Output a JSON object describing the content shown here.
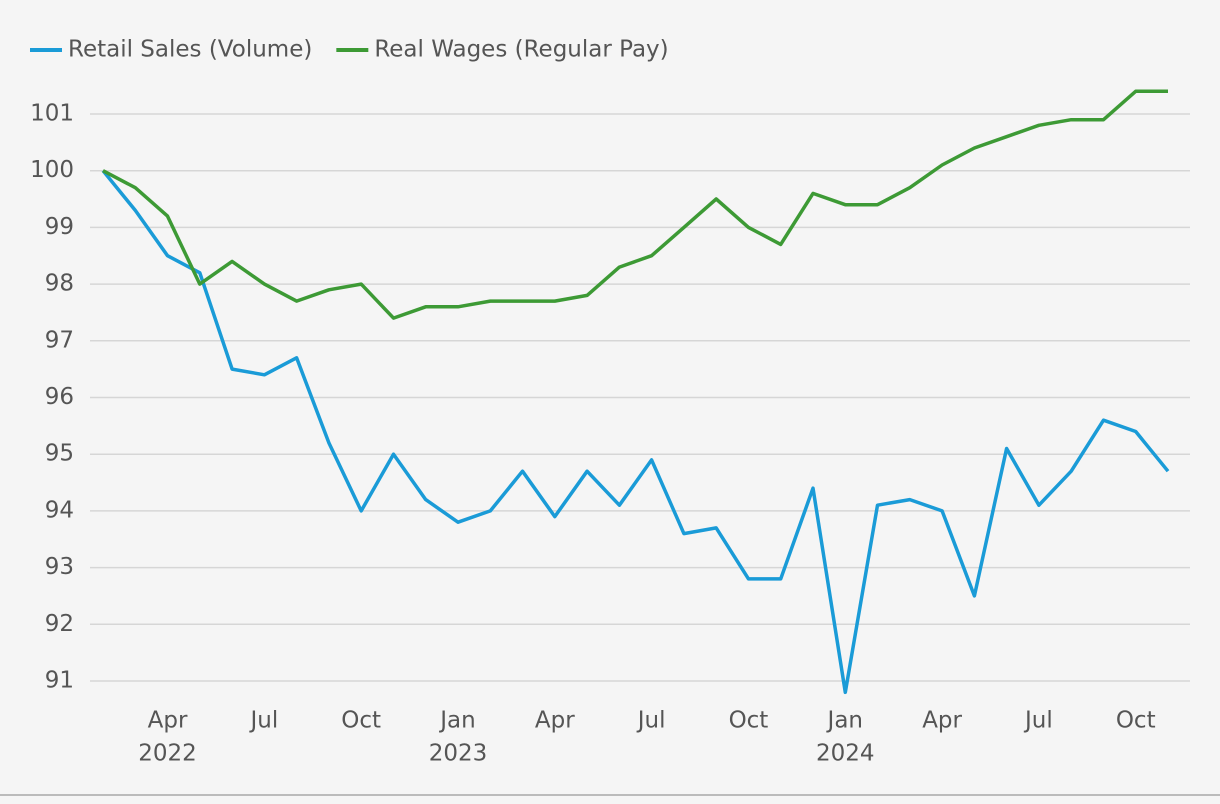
{
  "chart_data": {
    "type": "line",
    "categories": [
      null,
      null,
      "Apr",
      null,
      null,
      "Jul",
      null,
      null,
      "Oct",
      null,
      null,
      "Jan",
      null,
      null,
      "Apr",
      null,
      null,
      "Jul",
      null,
      null,
      "Oct",
      null,
      null,
      "Jan",
      null,
      null,
      "Apr",
      null,
      null,
      "Jul",
      null,
      null,
      "Oct",
      null
    ],
    "years": [
      null,
      null,
      "2022",
      null,
      null,
      null,
      null,
      null,
      null,
      null,
      null,
      "2023",
      null,
      null,
      null,
      null,
      null,
      null,
      null,
      null,
      null,
      null,
      null,
      "2024",
      null,
      null,
      null,
      null,
      null,
      null,
      null,
      null,
      null,
      null
    ],
    "series": [
      {
        "name": "Retail Sales (Volume)",
        "color": "#1a9bd7",
        "values": [
          100,
          99.3,
          98.5,
          98.2,
          96.5,
          96.4,
          96.7,
          95.2,
          94.0,
          95.0,
          94.2,
          93.8,
          94.0,
          94.7,
          93.9,
          94.7,
          94.1,
          94.9,
          93.6,
          93.7,
          92.8,
          92.8,
          94.4,
          90.8,
          94.1,
          94.2,
          94.0,
          92.5,
          95.1,
          94.1,
          94.7,
          95.6,
          95.4,
          94.7
        ]
      },
      {
        "name": "Real Wages (Regular Pay)",
        "color": "#3d9a35",
        "values": [
          100,
          99.7,
          99.2,
          98.0,
          98.4,
          98.0,
          97.7,
          97.9,
          98.0,
          97.4,
          97.6,
          97.6,
          97.7,
          97.7,
          97.7,
          97.8,
          98.3,
          98.5,
          99.0,
          99.5,
          99.0,
          98.7,
          99.6,
          99.4,
          99.4,
          99.7,
          100.1,
          100.4,
          100.6,
          100.8,
          100.9,
          100.9,
          101.4,
          101.4
        ]
      }
    ],
    "ylim": [
      90.6,
      101.8
    ],
    "yticks": [
      91,
      92,
      93,
      94,
      95,
      96,
      97,
      98,
      99,
      100,
      101
    ],
    "grid": true
  }
}
